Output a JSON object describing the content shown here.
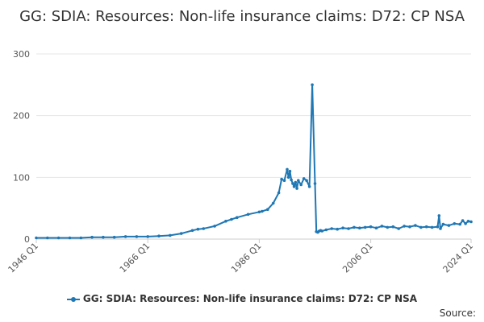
{
  "chart_data": {
    "type": "line",
    "title": "GG: SDIA: Resources: Non-life insurance claims: D72: CP NSA",
    "xlabel": "",
    "ylabel": "",
    "ylim": [
      0,
      300
    ],
    "yticks": [
      0,
      100,
      200,
      300
    ],
    "xlim": [
      1946.0,
      2024.0
    ],
    "xtick_labels": [
      "1946 Q1",
      "1966 Q1",
      "1986 Q1",
      "2006 Q1",
      "2024 Q1"
    ],
    "xtick_values": [
      1946.0,
      1966.0,
      1986.0,
      2006.0,
      2024.0
    ],
    "grid": true,
    "legend_position": "bottom",
    "series": [
      {
        "name": "GG: SDIA: Resources: Non-life insurance claims: D72: CP NSA",
        "color": "#1f77b4",
        "x": [
          1946.0,
          1948.0,
          1950.0,
          1952.0,
          1954.0,
          1956.0,
          1958.0,
          1960.0,
          1962.0,
          1964.0,
          1966.0,
          1968.0,
          1970.0,
          1972.0,
          1974.0,
          1975.0,
          1976.0,
          1978.0,
          1980.0,
          1981.0,
          1982.0,
          1984.0,
          1986.0,
          1986.5,
          1987.5,
          1988.5,
          1989.5,
          1990.0,
          1990.5,
          1991.0,
          1991.25,
          1991.5,
          1991.75,
          1992.0,
          1992.25,
          1992.5,
          1992.75,
          1993.0,
          1993.5,
          1994.0,
          1994.5,
          1995.0,
          1995.5,
          1996.0,
          1996.25,
          1996.5,
          1996.75,
          1997.0,
          1997.25,
          1998.0,
          1999.0,
          2000.0,
          2001.0,
          2002.0,
          2003.0,
          2004.0,
          2005.0,
          2006.0,
          2007.0,
          2008.0,
          2009.0,
          2010.0,
          2011.0,
          2012.0,
          2013.0,
          2014.0,
          2015.0,
          2016.0,
          2017.0,
          2018.0,
          2018.25,
          2018.5,
          2019.0,
          2020.0,
          2021.0,
          2022.0,
          2022.5,
          2023.0,
          2023.5,
          2024.0
        ],
        "values": [
          2,
          2,
          2,
          2,
          2,
          3,
          3,
          3,
          4,
          4,
          4,
          5,
          6,
          9,
          14,
          16,
          17,
          21,
          29,
          32,
          35,
          40,
          44,
          45,
          48,
          58,
          75,
          97,
          95,
          113,
          100,
          110,
          96,
          90,
          85,
          92,
          82,
          95,
          88,
          98,
          95,
          85,
          250,
          90,
          12,
          11,
          13,
          14,
          13,
          15,
          17,
          16,
          18,
          17,
          19,
          18,
          19,
          20,
          18,
          21,
          19,
          20,
          17,
          21,
          20,
          22,
          19,
          20,
          19,
          20,
          38,
          17,
          24,
          22,
          25,
          24,
          30,
          25,
          29,
          28
        ]
      }
    ]
  },
  "source_label": "Source:"
}
